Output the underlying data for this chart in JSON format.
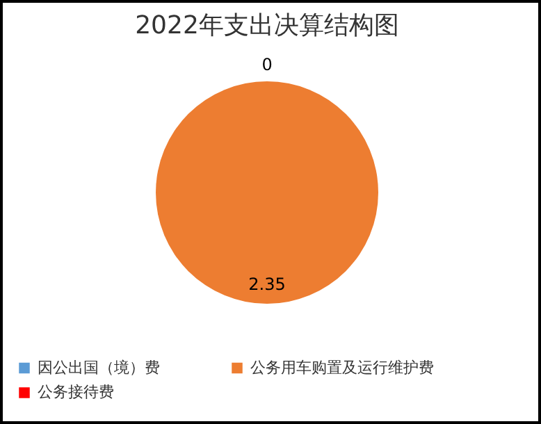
{
  "chart_data": {
    "type": "pie",
    "title": "2022年支出决算结构图",
    "categories": [
      "因公出国（境）费",
      "公务用车购置及运行维护费",
      "公务接待费"
    ],
    "values": [
      0,
      2.35,
      0
    ],
    "colors": [
      "#5b9bd5",
      "#ed7d31",
      "#ff0000"
    ],
    "value_labels": [
      "0",
      "2.35",
      null
    ],
    "legend": "bottom"
  }
}
